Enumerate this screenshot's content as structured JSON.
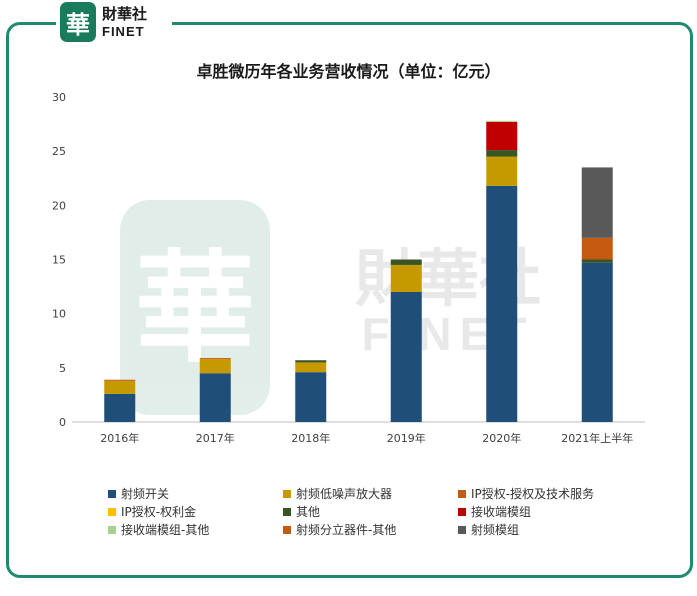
{
  "brand": {
    "logo_char": "華",
    "name_cn": "財華社",
    "name_en": "FINET"
  },
  "watermark": {
    "logo_char": "華",
    "name_cn": "財華社",
    "name_en": "FINET"
  },
  "chart_data": {
    "type": "bar",
    "stacked": true,
    "title": "卓胜微历年各业务营收情况（单位：亿元）",
    "xlabel": "",
    "ylabel": "",
    "ylim": [
      0,
      30
    ],
    "yticks": [
      0,
      5,
      10,
      15,
      20,
      25,
      30
    ],
    "grid": false,
    "legend_position": "bottom",
    "categories": [
      "2016年",
      "2017年",
      "2018年",
      "2019年",
      "2020年",
      "2021年上半年"
    ],
    "series": [
      {
        "name": "射频开关",
        "color": "#1f4e79",
        "values": [
          2.6,
          4.5,
          4.6,
          12.0,
          21.8,
          14.7
        ]
      },
      {
        "name": "射频低噪声放大器",
        "color": "#c49a00",
        "values": [
          1.2,
          1.3,
          0.9,
          2.5,
          2.7,
          0.0
        ]
      },
      {
        "name": "IP授权-授权及技术服务",
        "color": "#c55a11",
        "values": [
          0.1,
          0.1,
          0.0,
          0.0,
          0.0,
          0.0
        ]
      },
      {
        "name": "IP授权-权利金",
        "color": "#ffc000",
        "values": [
          0.0,
          0.0,
          0.0,
          0.0,
          0.0,
          0.0
        ]
      },
      {
        "name": "其他",
        "color": "#375623",
        "values": [
          0.0,
          0.0,
          0.2,
          0.5,
          0.6,
          0.3
        ]
      },
      {
        "name": "接收端模组",
        "color": "#c00000",
        "values": [
          0.0,
          0.0,
          0.0,
          0.0,
          2.6,
          0.0
        ]
      },
      {
        "name": "接收端模组-其他",
        "color": "#a9d18e",
        "values": [
          0.0,
          0.0,
          0.0,
          0.0,
          0.1,
          0.0
        ]
      },
      {
        "name": "射频分立器件-其他",
        "color": "#c55a11",
        "values": [
          0.0,
          0.0,
          0.0,
          0.0,
          0.0,
          2.0
        ]
      },
      {
        "name": "射频模组",
        "color": "#595959",
        "values": [
          0.0,
          0.0,
          0.0,
          0.0,
          0.0,
          6.5
        ]
      }
    ]
  }
}
